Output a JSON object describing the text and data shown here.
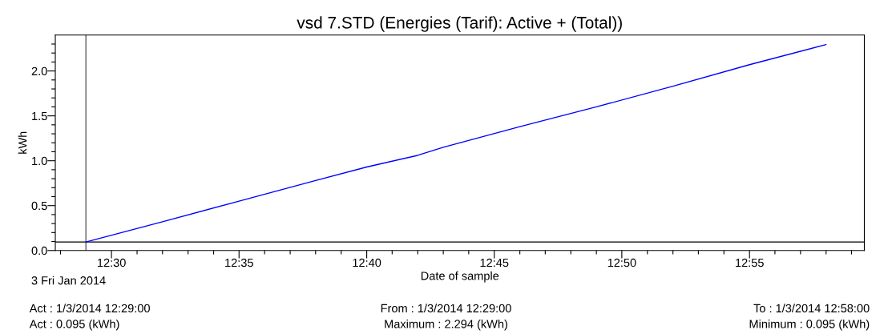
{
  "chart_data": {
    "type": "line",
    "title": "vsd 7.STD (Energies (Tarif): Active + (Total))",
    "xlabel": "Date of sample",
    "ylabel": "kWh",
    "x": [
      12.4833,
      12.5333,
      12.5833,
      12.6333,
      12.6667,
      12.7,
      12.7167,
      12.7667,
      12.8167,
      12.8667,
      12.9167,
      12.9667
    ],
    "series": [
      {
        "color": "#0000ff",
        "values": [
          0.095,
          0.32,
          0.55,
          0.78,
          0.93,
          1.06,
          1.15,
          1.38,
          1.6,
          1.83,
          2.07,
          2.294
        ]
      }
    ],
    "xlim": [
      12.4633,
      12.9917
    ],
    "xticks": [
      {
        "value": 12.4667,
        "label": null
      },
      {
        "value": 12.5,
        "label": "12:30"
      },
      {
        "value": 12.5167,
        "label": null
      },
      {
        "value": 12.5333,
        "label": null
      },
      {
        "value": 12.55,
        "label": null
      },
      {
        "value": 12.5667,
        "label": null
      },
      {
        "value": 12.5833,
        "label": "12:35"
      },
      {
        "value": 12.6,
        "label": null
      },
      {
        "value": 12.6167,
        "label": null
      },
      {
        "value": 12.6333,
        "label": null
      },
      {
        "value": 12.65,
        "label": null
      },
      {
        "value": 12.6667,
        "label": "12:40"
      },
      {
        "value": 12.6833,
        "label": null
      },
      {
        "value": 12.7,
        "label": null
      },
      {
        "value": 12.7167,
        "label": null
      },
      {
        "value": 12.7333,
        "label": null
      },
      {
        "value": 12.75,
        "label": "12:45"
      },
      {
        "value": 12.7667,
        "label": null
      },
      {
        "value": 12.7833,
        "label": null
      },
      {
        "value": 12.8,
        "label": null
      },
      {
        "value": 12.8167,
        "label": null
      },
      {
        "value": 12.8333,
        "label": "12:50"
      },
      {
        "value": 12.85,
        "label": null
      },
      {
        "value": 12.8667,
        "label": null
      },
      {
        "value": 12.8833,
        "label": null
      },
      {
        "value": 12.9,
        "label": null
      },
      {
        "value": 12.9167,
        "label": "12:55"
      },
      {
        "value": 12.9333,
        "label": null
      },
      {
        "value": 12.95,
        "label": null
      },
      {
        "value": 12.9667,
        "label": null
      },
      {
        "value": 12.9833,
        "label": null
      }
    ],
    "ylim": [
      0,
      2.4
    ],
    "yticks": [
      {
        "value": 0,
        "label": "0.0"
      },
      {
        "value": 0.1,
        "label": null
      },
      {
        "value": 0.2,
        "label": null
      },
      {
        "value": 0.3,
        "label": null
      },
      {
        "value": 0.4,
        "label": null
      },
      {
        "value": 0.5,
        "label": "0.5"
      },
      {
        "value": 0.6,
        "label": null
      },
      {
        "value": 0.7,
        "label": null
      },
      {
        "value": 0.8,
        "label": null
      },
      {
        "value": 0.9,
        "label": null
      },
      {
        "value": 1.0,
        "label": "1.0"
      },
      {
        "value": 1.1,
        "label": null
      },
      {
        "value": 1.2,
        "label": null
      },
      {
        "value": 1.3,
        "label": null
      },
      {
        "value": 1.4,
        "label": null
      },
      {
        "value": 1.5,
        "label": "1.5"
      },
      {
        "value": 1.6,
        "label": null
      },
      {
        "value": 1.7,
        "label": null
      },
      {
        "value": 1.8,
        "label": null
      },
      {
        "value": 1.9,
        "label": null
      },
      {
        "value": 2.0,
        "label": "2.0"
      },
      {
        "value": 2.1,
        "label": null
      },
      {
        "value": 2.2,
        "label": null
      },
      {
        "value": 2.3,
        "label": null
      }
    ],
    "ref_lines": [
      {
        "axis": "x",
        "value": 12.4833,
        "color": "#606060"
      },
      {
        "axis": "y",
        "value": 0.095,
        "color": "#000000"
      }
    ],
    "annotations": [
      "3 Fri Jan 2014",
      "Act : 1/3/2014 12:29:00",
      "Act : 0.095 (kWh)",
      "From : 1/3/2014 12:29:00",
      "Maximum : 2.294 (kWh)",
      "To : 1/3/2014 12:58:00",
      "Minimum : 0.095 (kWh)"
    ],
    "grid": false
  }
}
